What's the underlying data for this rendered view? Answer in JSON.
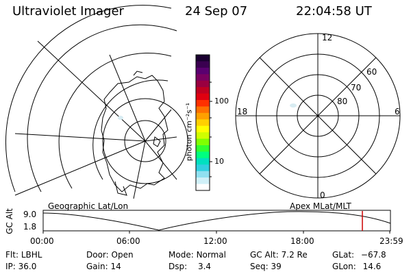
{
  "header": {
    "title": "Ultraviolet Imager",
    "date": "24 Sep 07",
    "time": "22:04:58 UT"
  },
  "colorbar": {
    "label": "photon cm⁻²s⁻¹",
    "tick_100": "100",
    "tick_10": "10",
    "colors": [
      "#1a0030",
      "#3a0050",
      "#5a0070",
      "#7a0060",
      "#9a0040",
      "#c00020",
      "#e00010",
      "#ff3000",
      "#ff7000",
      "#ffa000",
      "#ffd000",
      "#ffff00",
      "#d0ff00",
      "#80ff00",
      "#30ff30",
      "#00ff80",
      "#00e0c0",
      "#30d0e0",
      "#90e0f0",
      "#d0f0f8",
      "#ffffff"
    ]
  },
  "polar": {
    "label_top": "12",
    "label_bottom": "0",
    "label_left": "18",
    "label_right": "6",
    "ring_60": "60",
    "ring_70": "70",
    "ring_80": "80"
  },
  "panels": {
    "geo_label": "Geographic Lat/Lon",
    "apex_label": "Apex  MLat/MLT"
  },
  "orbit": {
    "yaxis_label": "GC Alt",
    "ytick_top": "9.0",
    "ytick_bottom": "1.8",
    "xticks": [
      "00:00",
      "06:00",
      "12:00",
      "18:00",
      "23:59"
    ],
    "marker_color": "#cc0000"
  },
  "info": {
    "flt_label": "Flt:",
    "flt_value": "LBHL",
    "door_label": "Door:",
    "door_value": "Open",
    "mode_label": "Mode:",
    "mode_value": "Normal",
    "gcalt_label": "GC Alt:",
    "gcalt_value": "7.2 Re",
    "glat_label": "GLat:",
    "glat_value": "−67.8",
    "ip_label": "IP:",
    "ip_value": "36.0",
    "gain_label": "Gain:",
    "gain_value": "14",
    "dsp_label": "Dsp:",
    "dsp_value": "3.4",
    "seq_label": "Seq:",
    "seq_value": "39",
    "glon_label": "GLon:",
    "glon_value": "14.6"
  }
}
